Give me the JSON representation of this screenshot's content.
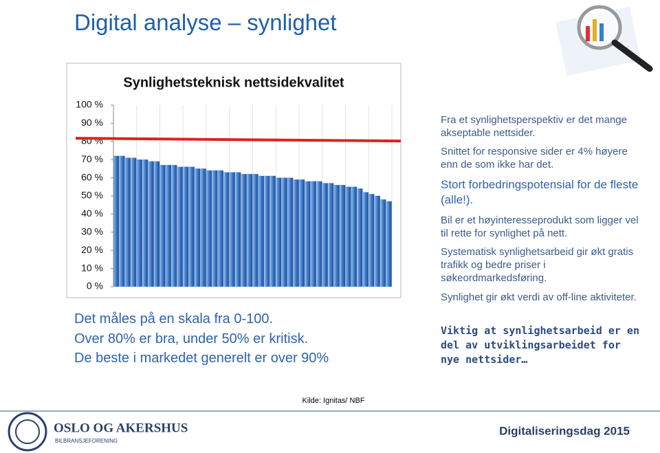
{
  "title": "Digital analyse – synlighet",
  "chart_data": {
    "type": "bar",
    "title": "Synlighetsteknisk nettsidekvalitet",
    "categories": [
      null,
      null,
      null,
      null,
      null,
      null,
      null,
      null,
      null,
      null,
      null,
      null,
      null,
      null,
      null,
      null,
      null,
      null,
      null,
      null,
      null,
      null,
      null,
      null,
      null,
      null,
      null,
      null,
      null,
      null,
      null,
      null,
      null,
      null,
      null,
      null,
      null,
      null,
      null,
      null,
      null,
      null,
      null,
      null,
      null,
      null,
      null,
      null
    ],
    "values": [
      72,
      72,
      71,
      71,
      70,
      70,
      69,
      69,
      67,
      67,
      67,
      66,
      66,
      66,
      65,
      65,
      64,
      64,
      64,
      63,
      63,
      63,
      62,
      62,
      62,
      61,
      61,
      61,
      60,
      60,
      60,
      59,
      59,
      58,
      58,
      58,
      57,
      57,
      56,
      56,
      55,
      55,
      54,
      52,
      51,
      50,
      48,
      47
    ],
    "color": "#3a78c9",
    "ylim": [
      0,
      100
    ],
    "yticks": [
      {
        "value": 0,
        "label": "0 %"
      },
      {
        "value": 10,
        "label": "10 %"
      },
      {
        "value": 20,
        "label": "20 %"
      },
      {
        "value": 30,
        "label": "30 %"
      },
      {
        "value": 40,
        "label": "40 %"
      },
      {
        "value": 50,
        "label": "50 %"
      },
      {
        "value": 60,
        "label": "60 %"
      },
      {
        "value": 70,
        "label": "70 %"
      },
      {
        "value": 80,
        "label": "80 %"
      },
      {
        "value": 90,
        "label": "90 %"
      },
      {
        "value": 100,
        "label": "100 %"
      }
    ],
    "reference_line": {
      "value": 81,
      "color": "#e02020"
    },
    "grid": true
  },
  "left_text": [
    "Det måles på en skala fra 0-100.",
    "Over 80% er bra, under 50% er kritisk.",
    "De beste i markedet generelt er over 90%"
  ],
  "right_text": [
    "Fra et synlighetsperspektiv er det mange akseptable nettsider.",
    "Snittet for responsive sider er 4% høyere enn de som ikke har det.",
    "Stort forbedringspotensial for de fleste (alle!).",
    "Bil er et høyinteresseprodukt som ligger vel til rette for synlighet på nett.",
    "Systematisk synlighetsarbeid gir økt gratis trafikk og bedre priser i søkeordmarkedsføring.",
    "Synlighet gir økt verdi av off-line aktiviteter.",
    "Viktig at synlighetsarbeid er en del av utviklingsarbeidet for nye nettsider…"
  ],
  "source": "Kilde: Ignitas/ NBF",
  "footer": {
    "org": "OSLO OG AKERSHUS",
    "org_sub": "BILBRANSJEFORENING",
    "event": "Digitaliseringsdag 2015"
  }
}
